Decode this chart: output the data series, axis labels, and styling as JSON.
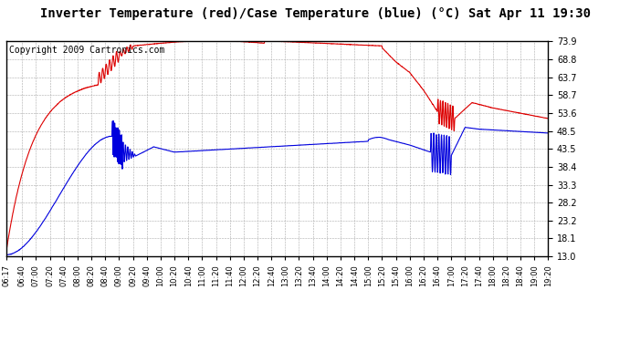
{
  "title": "Inverter Temperature (red)/Case Temperature (blue) (°C) Sat Apr 11 19:30",
  "copyright": "Copyright 2009 Cartronics.com",
  "background_color": "#ffffff",
  "plot_bg_color": "#ffffff",
  "grid_color": "#aaaaaa",
  "yticks": [
    13.0,
    18.1,
    23.2,
    28.2,
    33.3,
    38.4,
    43.5,
    48.5,
    53.6,
    58.7,
    63.7,
    68.8,
    73.9
  ],
  "xtick_labels": [
    "06:17",
    "06:40",
    "07:00",
    "07:20",
    "07:40",
    "08:00",
    "08:20",
    "08:40",
    "09:00",
    "09:20",
    "09:40",
    "10:00",
    "10:20",
    "10:40",
    "11:00",
    "11:20",
    "11:40",
    "12:00",
    "12:20",
    "12:40",
    "13:00",
    "13:20",
    "13:40",
    "14:00",
    "14:20",
    "14:40",
    "15:00",
    "15:20",
    "15:40",
    "16:00",
    "16:20",
    "16:40",
    "17:00",
    "17:20",
    "17:40",
    "18:00",
    "18:20",
    "18:40",
    "19:00",
    "19:20"
  ],
  "red_color": "#dd0000",
  "blue_color": "#0000dd",
  "ylim": [
    13.0,
    73.9
  ],
  "title_fontsize": 10,
  "copyright_fontsize": 7
}
